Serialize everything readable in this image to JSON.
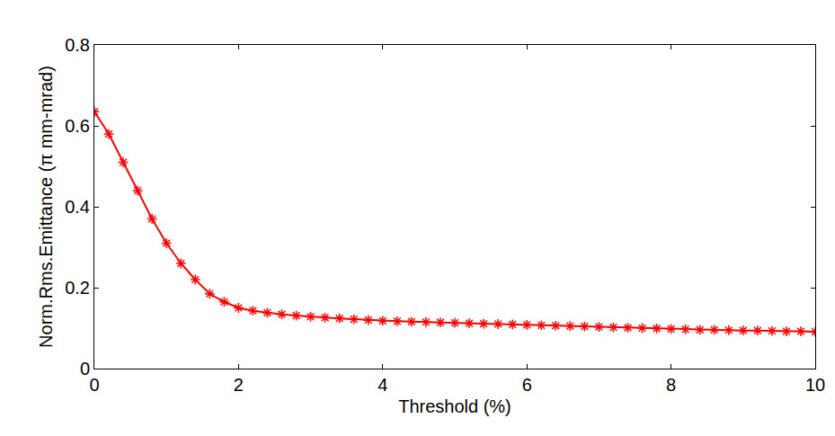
{
  "chart_data": {
    "type": "line",
    "x_label": "Threshold (%)",
    "y_label": "Norm.Rms.Emittance (π mm-mrad)",
    "x": [
      0,
      0.2,
      0.4,
      0.6,
      0.8,
      1.0,
      1.2,
      1.4,
      1.6,
      1.8,
      2.0,
      2.2,
      2.4,
      2.6,
      2.8,
      3.0,
      3.2,
      3.4,
      3.6,
      3.8,
      4.0,
      4.2,
      4.4,
      4.6,
      4.8,
      5.0,
      5.2,
      5.4,
      5.6,
      5.8,
      6.0,
      6.2,
      6.4,
      6.6,
      6.8,
      7.0,
      7.2,
      7.4,
      7.6,
      7.8,
      8.0,
      8.2,
      8.4,
      8.6,
      8.8,
      9.0,
      9.2,
      9.4,
      9.6,
      9.8,
      10
    ],
    "values": [
      0.635,
      0.58,
      0.51,
      0.44,
      0.37,
      0.31,
      0.26,
      0.22,
      0.185,
      0.165,
      0.15,
      0.143,
      0.138,
      0.134,
      0.131,
      0.128,
      0.126,
      0.124,
      0.122,
      0.12,
      0.118,
      0.117,
      0.116,
      0.115,
      0.114,
      0.113,
      0.112,
      0.111,
      0.11,
      0.109,
      0.108,
      0.107,
      0.106,
      0.105,
      0.104,
      0.103,
      0.102,
      0.101,
      0.1,
      0.099,
      0.098,
      0.097,
      0.096,
      0.096,
      0.095,
      0.094,
      0.094,
      0.093,
      0.092,
      0.092,
      0.091
    ],
    "color": "#ff0000",
    "marker": "asterisk",
    "line_style": "solid",
    "xlim": [
      0,
      10
    ],
    "xticks": [
      0,
      2,
      4,
      6,
      8,
      10
    ],
    "ylim": [
      0,
      0.8
    ],
    "yticks": [
      0,
      0.2,
      0.4,
      0.6,
      0.8
    ],
    "grid": false
  }
}
